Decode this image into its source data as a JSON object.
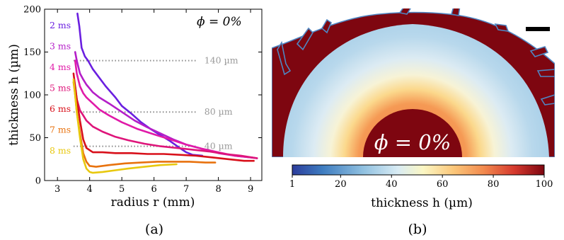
{
  "chart_data": [
    {
      "type": "line",
      "panel_label": "(a)",
      "annotation": "ϕ = 0%",
      "xlabel": "radius r (mm)",
      "ylabel": "thickness h (µm)",
      "xlim": [
        2.6,
        9.35
      ],
      "ylim": [
        0,
        200
      ],
      "xticks": [
        3,
        4,
        5,
        6,
        7,
        8,
        9
      ],
      "yticks": [
        0,
        50,
        100,
        150,
        200
      ],
      "reference_lines": [
        {
          "y": 140,
          "label": "140 µm",
          "x_start": 3.5,
          "x_end": 7.3
        },
        {
          "y": 80,
          "label": "80 µm",
          "x_start": 3.5,
          "x_end": 7.3
        },
        {
          "y": 40,
          "label": "40 µm",
          "x_start": 3.5,
          "x_end": 7.3
        }
      ],
      "series": [
        {
          "name": "2 ms",
          "color": "#6a1fe0",
          "x": [
            3.62,
            3.68,
            3.75,
            3.85,
            3.95,
            4.1,
            4.3,
            4.5,
            4.8,
            5.0,
            5.3,
            5.6,
            5.9,
            6.2,
            6.5,
            6.8,
            7.0,
            7.2,
            7.5
          ],
          "y": [
            195,
            180,
            155,
            145,
            140,
            130,
            120,
            110,
            97,
            87,
            78,
            68,
            60,
            53,
            46,
            38,
            33,
            30,
            29
          ]
        },
        {
          "name": "3 ms",
          "color": "#b41ec8",
          "x": [
            3.55,
            3.6,
            3.7,
            3.8,
            3.9,
            4.1,
            4.3,
            4.6,
            5.0,
            5.4,
            5.8,
            6.2,
            6.6,
            7.0,
            7.5,
            8.0,
            8.5,
            9.0,
            9.2
          ],
          "y": [
            150,
            140,
            125,
            118,
            112,
            103,
            97,
            90,
            80,
            70,
            62,
            55,
            48,
            42,
            37,
            32,
            29,
            27,
            26
          ]
        },
        {
          "name": "4 ms",
          "color": "#e01aa8",
          "x": [
            3.55,
            3.6,
            3.7,
            3.8,
            3.9,
            4.1,
            4.3,
            4.6,
            5.0,
            5.5,
            6.0,
            6.5,
            7.0,
            7.5,
            8.0,
            8.5,
            9.0,
            9.2
          ],
          "y": [
            140,
            125,
            110,
            102,
            97,
            90,
            83,
            76,
            68,
            60,
            54,
            48,
            42,
            37,
            33,
            29,
            27,
            26
          ]
        },
        {
          "name": "5 ms",
          "color": "#de157a",
          "x": [
            3.55,
            3.6,
            3.7,
            3.8,
            3.9,
            4.1,
            4.4,
            4.8,
            5.2,
            5.7,
            6.2,
            6.7,
            7.2,
            7.7,
            8.2,
            8.7,
            9.2
          ],
          "y": [
            110,
            95,
            82,
            76,
            70,
            63,
            57,
            51,
            47,
            43,
            40,
            38,
            36,
            34,
            31,
            29,
            26
          ]
        },
        {
          "name": "6 ms",
          "color": "#d8101a",
          "x": [
            3.5,
            3.55,
            3.6,
            3.7,
            3.8,
            3.9,
            4.1,
            4.4,
            4.8,
            5.3,
            5.8,
            6.3,
            6.8,
            7.3,
            7.8,
            8.3,
            8.8,
            9.1
          ],
          "y": [
            125,
            110,
            95,
            70,
            48,
            38,
            33,
            33,
            32,
            32,
            31,
            31,
            30,
            29,
            27,
            25,
            23,
            23
          ]
        },
        {
          "name": "7 ms",
          "color": "#e8720e",
          "x": [
            3.5,
            3.55,
            3.6,
            3.7,
            3.8,
            3.9,
            4.0,
            4.2,
            4.6,
            5.1,
            5.6,
            6.1,
            6.6,
            7.1,
            7.6,
            7.9
          ],
          "y": [
            115,
            100,
            80,
            55,
            32,
            22,
            17,
            16,
            18,
            20,
            21,
            22,
            22,
            22,
            21,
            21
          ]
        },
        {
          "name": "8 ms",
          "color": "#e8c80e",
          "x": [
            3.5,
            3.55,
            3.6,
            3.7,
            3.8,
            3.9,
            4.0,
            4.1,
            4.4,
            4.8,
            5.2,
            5.7,
            6.2,
            6.7
          ],
          "y": [
            118,
            100,
            80,
            50,
            25,
            14,
            10,
            9,
            10,
            12,
            14,
            16,
            18,
            19
          ]
        }
      ]
    },
    {
      "type": "heatmap",
      "panel_label": "(b)",
      "annotation": "ϕ = 0%",
      "colorbar": {
        "label": "thickness h (µm)",
        "ticks": [
          1,
          20,
          40,
          60,
          80,
          100
        ],
        "range": [
          1,
          100
        ]
      }
    }
  ]
}
